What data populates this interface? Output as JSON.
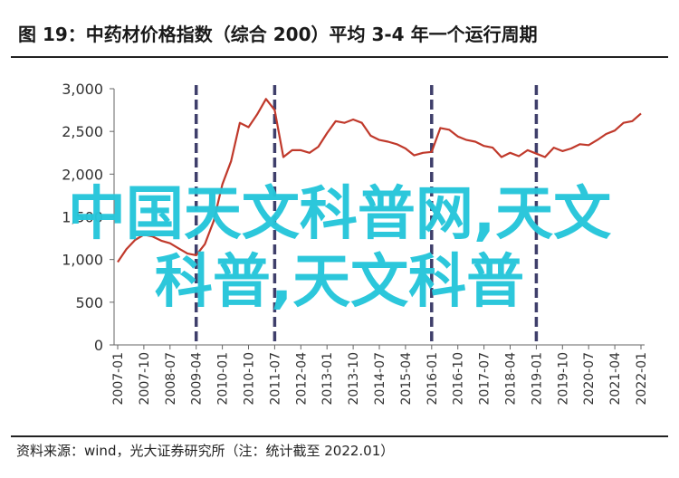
{
  "header": {
    "title": "图 19：中药材价格指数（综合 200）平均 3-4 年一个运行周期"
  },
  "footer": {
    "source": "资料来源：wind，光大证券研究所（注：统计截至 2022.01）"
  },
  "overlay": {
    "line1": "中国天文科普网,天文",
    "line2": "科普,天文科普"
  },
  "chart_data": {
    "type": "line",
    "title": "",
    "xlabel": "",
    "ylabel": "",
    "ylim": [
      0,
      3000
    ],
    "yticks": [
      "0",
      "500",
      "1,000",
      "1,500",
      "2,000",
      "2,500",
      "3,000"
    ],
    "ytick_values": [
      0,
      500,
      1000,
      1500,
      2000,
      2500,
      3000
    ],
    "xticks": [
      "2007-01",
      "2007-10",
      "2008-07",
      "2009-04",
      "2010-01",
      "2010-10",
      "2011-07",
      "2012-04",
      "2013-01",
      "2013-10",
      "2014-07",
      "2015-04",
      "2016-01",
      "2016-10",
      "2017-07",
      "2018-04",
      "2019-01",
      "2019-10",
      "2020-07",
      "2021-04",
      "2022-01"
    ],
    "xlim": [
      "2007-01",
      "2022-01"
    ],
    "grid": false,
    "legend": "none",
    "series_color": "#c0392b",
    "cycle_line_color": "#3f3f6b",
    "cycle_markers": [
      "2009-04",
      "2011-07",
      "2016-01",
      "2019-01"
    ],
    "series": [
      {
        "x": [
          "2007-01",
          "2007-04",
          "2007-07",
          "2007-10",
          "2008-01",
          "2008-04",
          "2008-07",
          "2008-10",
          "2009-01",
          "2009-04",
          "2009-07",
          "2009-10",
          "2010-01",
          "2010-04",
          "2010-07",
          "2010-10",
          "2011-01",
          "2011-04",
          "2011-07",
          "2011-10",
          "2012-01",
          "2012-04",
          "2012-07",
          "2012-10",
          "2013-01",
          "2013-04",
          "2013-07",
          "2013-10",
          "2014-01",
          "2014-04",
          "2014-07",
          "2014-10",
          "2015-01",
          "2015-04",
          "2015-07",
          "2015-10",
          "2016-01",
          "2016-04",
          "2016-07",
          "2016-10",
          "2017-01",
          "2017-04",
          "2017-07",
          "2017-10",
          "2018-01",
          "2018-04",
          "2018-07",
          "2018-10",
          "2019-01",
          "2019-04",
          "2019-07",
          "2019-10",
          "2020-01",
          "2020-04",
          "2020-07",
          "2020-10",
          "2021-01",
          "2021-04",
          "2021-07",
          "2021-10",
          "2022-01"
        ],
        "values": [
          970,
          1120,
          1230,
          1290,
          1270,
          1220,
          1190,
          1130,
          1070,
          1050,
          1180,
          1450,
          1880,
          2150,
          2600,
          2550,
          2700,
          2880,
          2750,
          2200,
          2280,
          2280,
          2250,
          2320,
          2480,
          2620,
          2600,
          2640,
          2600,
          2450,
          2400,
          2380,
          2350,
          2300,
          2220,
          2250,
          2260,
          2540,
          2520,
          2440,
          2400,
          2380,
          2330,
          2310,
          2200,
          2250,
          2210,
          2280,
          2240,
          2200,
          2310,
          2270,
          2300,
          2350,
          2340,
          2400,
          2470,
          2510,
          2600,
          2620,
          2710
        ]
      }
    ]
  }
}
